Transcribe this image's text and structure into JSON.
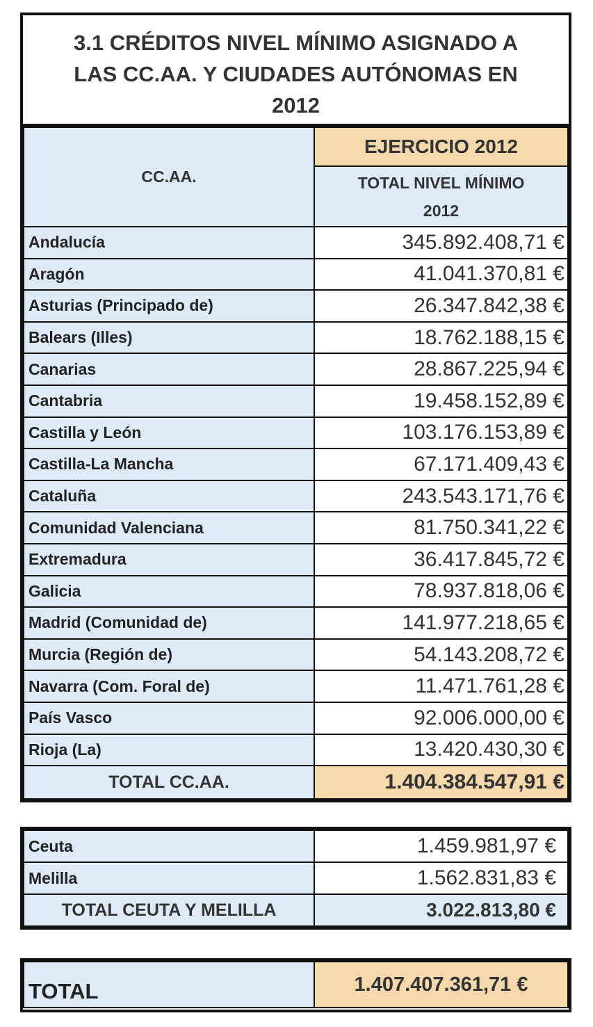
{
  "title": {
    "line1": "3.1 CRÉDITOS NIVEL MÍNIMO ASIGNADO A",
    "line2": "LAS CC.AA. Y CIUDADES AUTÓNOMAS EN",
    "line3": "2012"
  },
  "header": {
    "region_col": "CC.AA.",
    "year": "EJERCICIO 2012",
    "total_line1": "TOTAL NIVEL MÍNIMO",
    "total_line2": "2012"
  },
  "rows": [
    {
      "name": "Andalucía",
      "value": "345.892.408,71 €"
    },
    {
      "name": "Aragón",
      "value": "41.041.370,81 €"
    },
    {
      "name": "Asturias (Principado de)",
      "value": "26.347.842,38 €"
    },
    {
      "name": "Balears (Illes)",
      "value": "18.762.188,15 €"
    },
    {
      "name": "Canarias",
      "value": "28.867.225,94 €"
    },
    {
      "name": "Cantabria",
      "value": "19.458.152,89 €"
    },
    {
      "name": "Castilla y León",
      "value": "103.176.153,89 €"
    },
    {
      "name": "Castilla-La Mancha",
      "value": "67.171.409,43 €"
    },
    {
      "name": "Cataluña",
      "value": "243.543.171,76 €"
    },
    {
      "name": "Comunidad Valenciana",
      "value": "81.750.341,22 €"
    },
    {
      "name": "Extremadura",
      "value": "36.417.845,72 €"
    },
    {
      "name": "Galicia",
      "value": "78.937.818,06 €"
    },
    {
      "name": "Madrid (Comunidad de)",
      "value": "141.977.218,65 €"
    },
    {
      "name": "Murcia (Región de)",
      "value": "54.143.208,72 €"
    },
    {
      "name": "Navarra (Com. Foral de)",
      "value": "11.471.761,28 €"
    },
    {
      "name": "País Vasco",
      "value": "92.006.000,00 €"
    },
    {
      "name": "Rioja (La)",
      "value": "13.420.430,30 €"
    }
  ],
  "total_ccaa": {
    "label": "TOTAL CC.AA.",
    "value": "1.404.384.547,91 €"
  },
  "cities": [
    {
      "name": "Ceuta",
      "value": "1.459.981,97 €"
    },
    {
      "name": "Melilla",
      "value": "1.562.831,83 €"
    }
  ],
  "total_cities": {
    "label": "TOTAL CEUTA Y MELILLA",
    "value": "3.022.813,80 €"
  },
  "grand_total": {
    "label": "TOTAL",
    "value": "1.407.407.361,71 €"
  },
  "colors": {
    "header_blue": "#deebf7",
    "header_orange": "#f5d9ad",
    "border": "#111111"
  }
}
